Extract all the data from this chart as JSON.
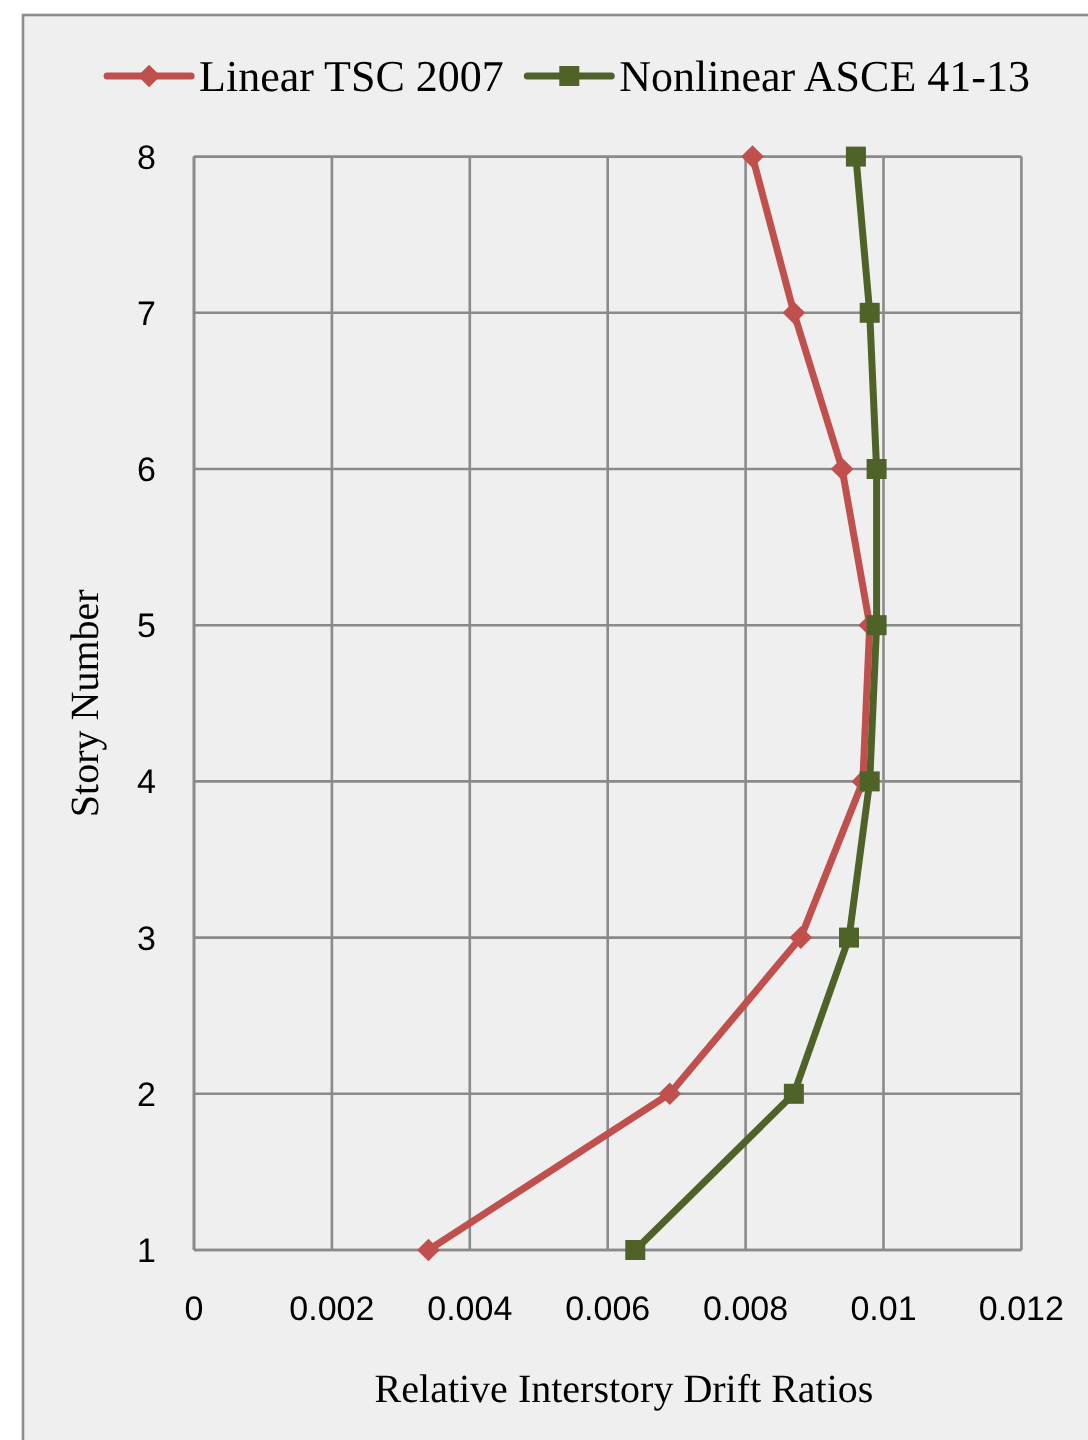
{
  "chart_data": {
    "type": "line",
    "xlabel": "Relative Interstory Drift Ratios",
    "ylabel": "Story Number",
    "series": [
      {
        "name": "Linear TSC 2007",
        "color": "#c0504d",
        "marker": "diamond",
        "x": [
          0.0034,
          0.0069,
          0.0088,
          0.0097,
          0.0098,
          0.0094,
          0.0087,
          0.0081
        ],
        "values": [
          1,
          2,
          3,
          4,
          5,
          6,
          7,
          8
        ]
      },
      {
        "name": "Nonlinear ASCE 41-13",
        "color": "#4f6228",
        "marker": "square",
        "x": [
          0.0064,
          0.0087,
          0.0095,
          0.0098,
          0.0099,
          0.0099,
          0.0098,
          0.0096
        ],
        "values": [
          1,
          2,
          3,
          4,
          5,
          6,
          7,
          8
        ]
      }
    ],
    "xlim": [
      0,
      0.012
    ],
    "xticks": [
      0,
      0.002,
      0.004,
      0.006,
      0.008,
      0.01,
      0.012
    ],
    "ylim": [
      1,
      8
    ],
    "yticks": [
      1,
      2,
      3,
      4,
      5,
      6,
      7,
      8
    ],
    "grid": true,
    "legend": "top",
    "line_style": "solid"
  }
}
